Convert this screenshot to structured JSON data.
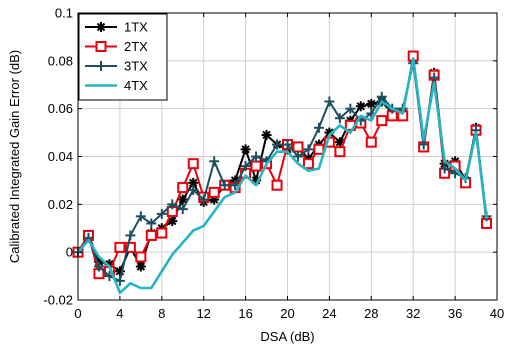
{
  "chart_data": {
    "type": "line",
    "xlabel": "DSA (dB)",
    "ylabel": "Calibrated Integrated Gain Error (dB)",
    "xlim": [
      0,
      40
    ],
    "ylim": [
      -0.02,
      0.1
    ],
    "xticks": [
      0,
      4,
      8,
      12,
      16,
      20,
      24,
      28,
      32,
      36,
      40
    ],
    "yticks": [
      -0.02,
      0,
      0.02,
      0.04,
      0.06,
      0.08,
      0.1
    ],
    "xtick_labels": [
      "0",
      "4",
      "8",
      "12",
      "16",
      "20",
      "24",
      "28",
      "32",
      "36",
      "40"
    ],
    "ytick_labels": [
      "-0.02",
      "0",
      "0.02",
      "0.04",
      "0.06",
      "0.08",
      "0.1"
    ],
    "grid": true,
    "legend_position": "top-left",
    "series": [
      {
        "name": "1TX",
        "color": "#000000",
        "marker": "star",
        "x": [
          0,
          1,
          2,
          3,
          4,
          5,
          6,
          7,
          8,
          9,
          10,
          11,
          12,
          13,
          14,
          15,
          16,
          17,
          18,
          19,
          20,
          21,
          22,
          23,
          24,
          25,
          26,
          27,
          28,
          29,
          30,
          31,
          32,
          33,
          34,
          35,
          36,
          37,
          38,
          39
        ],
        "y": [
          0.0,
          0.007,
          -0.004,
          -0.005,
          -0.008,
          0.002,
          -0.006,
          0.008,
          0.01,
          0.013,
          0.022,
          0.029,
          0.021,
          0.022,
          0.028,
          0.03,
          0.043,
          0.03,
          0.049,
          0.045,
          0.043,
          0.044,
          0.039,
          0.045,
          0.05,
          0.046,
          0.055,
          0.061,
          0.062,
          0.063,
          0.058,
          0.058,
          0.081,
          0.044,
          0.075,
          0.037,
          0.038,
          0.03,
          0.052,
          0.013
        ]
      },
      {
        "name": "2TX",
        "color": "#e8000b",
        "marker": "square",
        "x": [
          0,
          1,
          2,
          3,
          4,
          5,
          6,
          7,
          8,
          9,
          10,
          11,
          12,
          13,
          14,
          15,
          16,
          17,
          18,
          19,
          20,
          21,
          22,
          23,
          24,
          25,
          26,
          27,
          28,
          29,
          30,
          31,
          32,
          33,
          34,
          35,
          36,
          37,
          38,
          39
        ],
        "y": [
          0.0,
          0.007,
          -0.009,
          -0.008,
          0.002,
          0.002,
          -0.002,
          0.007,
          0.008,
          0.017,
          0.027,
          0.037,
          0.023,
          0.025,
          0.028,
          0.027,
          0.033,
          0.036,
          0.037,
          0.028,
          0.045,
          0.044,
          0.037,
          0.043,
          0.046,
          0.042,
          0.053,
          0.054,
          0.046,
          0.055,
          0.057,
          0.057,
          0.082,
          0.044,
          0.074,
          0.033,
          0.036,
          0.029,
          0.051,
          0.012
        ]
      },
      {
        "name": "3TX",
        "color": "#1d4f60",
        "marker": "plus",
        "x": [
          0,
          1,
          2,
          3,
          4,
          5,
          6,
          7,
          8,
          9,
          10,
          11,
          12,
          13,
          14,
          15,
          16,
          17,
          18,
          19,
          20,
          21,
          22,
          23,
          24,
          25,
          26,
          27,
          28,
          29,
          30,
          31,
          32,
          33,
          34,
          35,
          36,
          37,
          38,
          39
        ],
        "y": [
          0.0,
          0.006,
          -0.006,
          -0.01,
          -0.012,
          0.007,
          0.015,
          0.012,
          0.016,
          0.02,
          0.018,
          0.026,
          0.022,
          0.038,
          0.028,
          0.028,
          0.036,
          0.04,
          0.038,
          0.045,
          0.045,
          0.04,
          0.043,
          0.052,
          0.063,
          0.056,
          0.06,
          0.055,
          0.058,
          0.065,
          0.06,
          0.06,
          0.079,
          0.045,
          0.073,
          0.035,
          0.033,
          0.031,
          0.051,
          0.015
        ]
      },
      {
        "name": "4TX",
        "color": "#26b5c3",
        "marker": "none",
        "x": [
          0,
          1,
          2,
          3,
          4,
          5,
          6,
          7,
          8,
          9,
          10,
          11,
          12,
          13,
          14,
          15,
          16,
          17,
          18,
          19,
          20,
          21,
          22,
          23,
          24,
          25,
          26,
          27,
          28,
          29,
          30,
          31,
          32,
          33,
          34,
          35,
          36,
          37,
          38,
          39
        ],
        "y": [
          0.0,
          0.005,
          -0.002,
          -0.006,
          -0.017,
          -0.013,
          -0.015,
          -0.015,
          -0.008,
          -0.001,
          0.004,
          0.009,
          0.011,
          0.017,
          0.023,
          0.025,
          0.032,
          0.028,
          0.037,
          0.042,
          0.042,
          0.037,
          0.034,
          0.035,
          0.049,
          0.053,
          0.05,
          0.057,
          0.055,
          0.063,
          0.06,
          0.058,
          0.081,
          0.047,
          0.071,
          0.038,
          0.035,
          0.03,
          0.05,
          0.014
        ]
      }
    ]
  }
}
